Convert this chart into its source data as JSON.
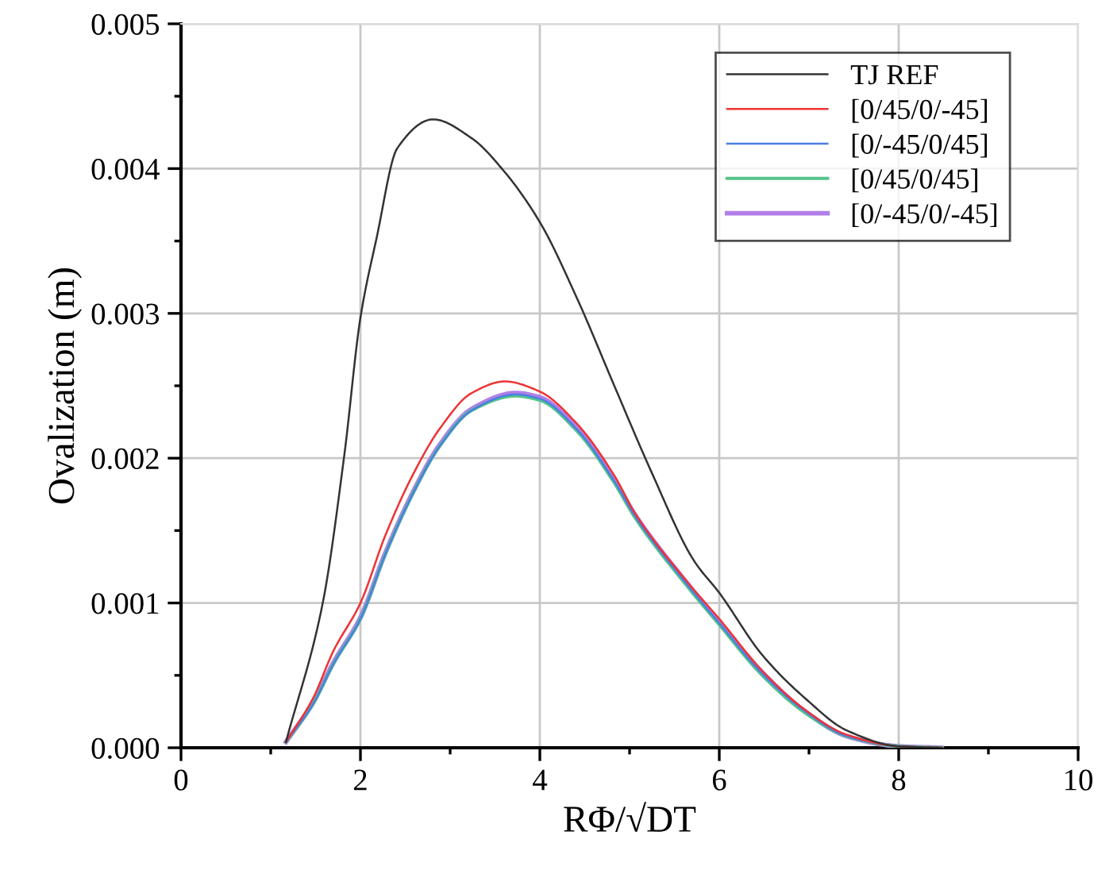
{
  "chart_data": {
    "type": "line",
    "xlabel": "RΦ/√DT",
    "ylabel": "Ovalization (m)",
    "xlim": [
      0,
      10
    ],
    "xticks": [
      0,
      2,
      4,
      6,
      8,
      10
    ],
    "ylim": [
      0,
      0.005
    ],
    "yticks": [
      {
        "value": 0,
        "label": "0.000"
      },
      {
        "value": 0.001,
        "label": "0.001"
      },
      {
        "value": 0.002,
        "label": "0.002"
      },
      {
        "value": 0.003,
        "label": "0.003"
      },
      {
        "value": 0.004,
        "label": "0.004"
      },
      {
        "value": 0.005,
        "label": "0.005"
      }
    ],
    "grid": true,
    "legend": "top right",
    "line_style": "solid",
    "series": [
      {
        "name": "TJ REF",
        "color": "#333333",
        "x": [
          1.17,
          1.58,
          1.82,
          2.0,
          2.18,
          2.41,
          2.81,
          3.24,
          3.59,
          4.0,
          4.41,
          4.83,
          5.24,
          5.72,
          6.0,
          6.48,
          6.96,
          7.42,
          8.0,
          8.48
        ],
        "values": [
          4e-05,
          0.001,
          0.00202,
          0.00297,
          0.00352,
          0.00414,
          0.00434,
          0.00421,
          0.00399,
          0.00363,
          0.00311,
          0.0025,
          0.00191,
          0.00129,
          0.00107,
          0.00064,
          0.00034,
          0.00012,
          1e-05,
          0
        ]
      },
      {
        "name": "[0/45/0/-45]",
        "color": "#ee3333",
        "x": [
          1.17,
          1.47,
          1.7,
          2.0,
          2.28,
          2.58,
          2.88,
          3.24,
          3.61,
          4.0,
          4.41,
          4.83,
          5.06,
          5.65,
          6.0,
          6.48,
          6.96,
          7.42,
          8.0,
          8.48
        ],
        "values": [
          4e-05,
          0.00034,
          0.00067,
          0.001,
          0.00147,
          0.00188,
          0.0022,
          0.00245,
          0.00253,
          0.00246,
          0.00224,
          0.00188,
          0.00162,
          0.00114,
          0.00089,
          0.00053,
          0.00026,
          9e-05,
          1e-05,
          0
        ]
      },
      {
        "name": "[0/-45/0/45]",
        "color": "#4a7fe0",
        "x": [
          1.17,
          1.47,
          1.7,
          2.0,
          2.28,
          2.58,
          2.88,
          3.24,
          3.73,
          4.0,
          4.41,
          4.83,
          5.06,
          5.65,
          6.0,
          6.48,
          6.96,
          7.42,
          8.0,
          8.48
        ],
        "values": [
          4e-05,
          0.0003,
          0.00058,
          0.00089,
          0.00134,
          0.00175,
          0.00208,
          0.00233,
          0.00244,
          0.00241,
          0.0022,
          0.00184,
          0.0016,
          0.00112,
          0.00086,
          0.00051,
          0.00025,
          8e-05,
          1e-05,
          0
        ]
      },
      {
        "name": "[0/45/0/45]",
        "color": "#55c48a",
        "x": [
          1.17,
          1.47,
          1.7,
          2.0,
          2.28,
          2.58,
          2.88,
          3.24,
          3.73,
          4.0,
          4.41,
          4.83,
          5.06,
          5.65,
          6.0,
          6.48,
          6.96,
          7.42,
          8.0,
          8.48
        ],
        "values": [
          4e-05,
          0.0003,
          0.00058,
          0.00089,
          0.00134,
          0.00175,
          0.00208,
          0.00233,
          0.00243,
          0.0024,
          0.00219,
          0.00183,
          0.00159,
          0.00111,
          0.00085,
          0.0005,
          0.00024,
          8e-05,
          1e-05,
          0
        ]
      },
      {
        "name": "[0/-45/0/-45]",
        "color": "#b27fe8",
        "x": [
          1.17,
          1.47,
          1.7,
          2.0,
          2.28,
          2.58,
          2.88,
          3.24,
          3.73,
          4.0,
          4.41,
          4.83,
          5.06,
          5.65,
          6.0,
          6.48,
          6.96,
          7.42,
          8.0,
          8.48
        ],
        "values": [
          4e-05,
          0.00031,
          0.00059,
          0.0009,
          0.00135,
          0.00176,
          0.00209,
          0.00234,
          0.00245,
          0.00242,
          0.00221,
          0.00185,
          0.00161,
          0.00113,
          0.00087,
          0.00052,
          0.00025,
          8e-05,
          1e-05,
          0
        ]
      }
    ]
  }
}
